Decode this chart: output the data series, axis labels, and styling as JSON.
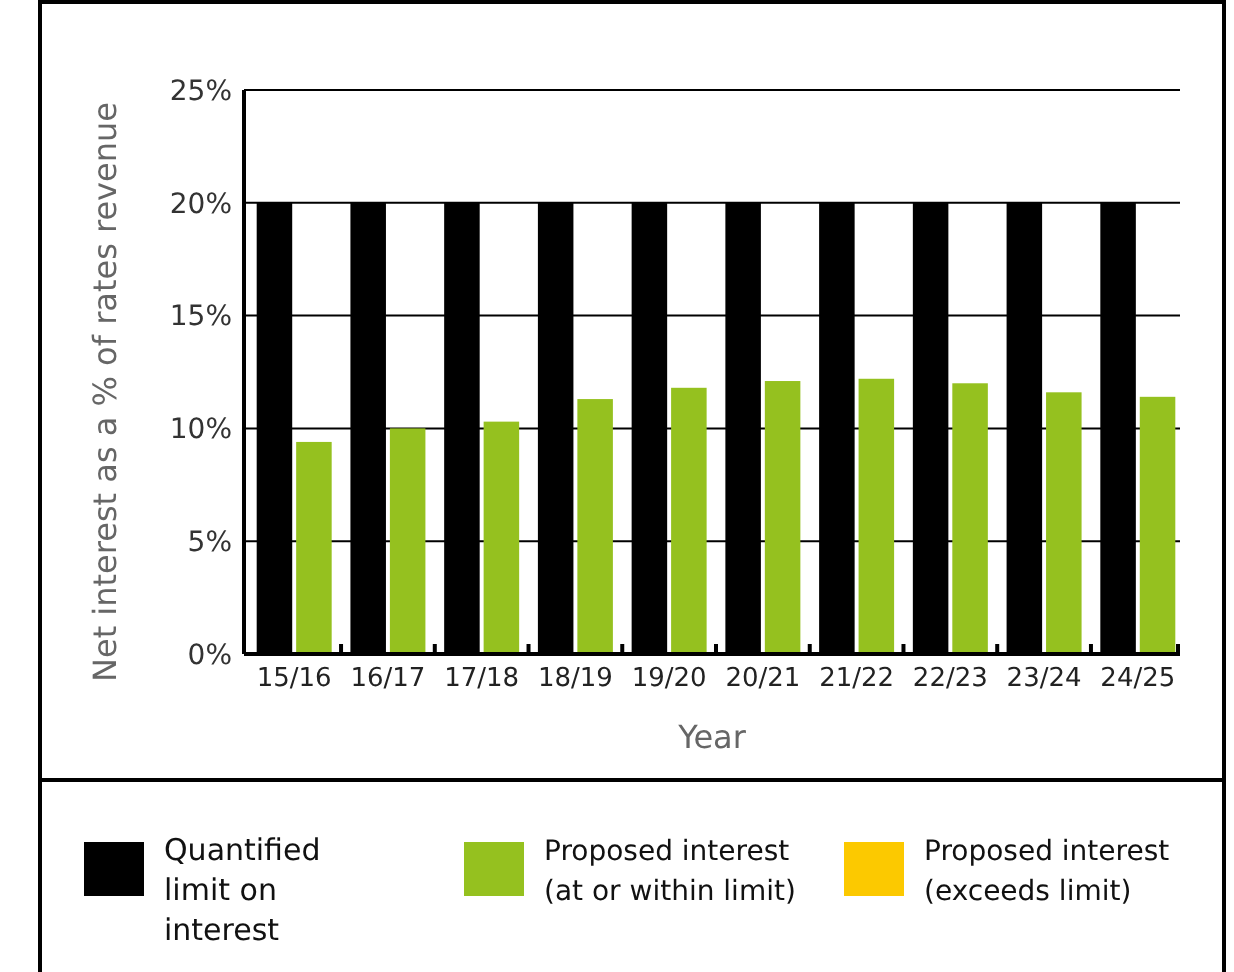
{
  "chart_data": {
    "type": "bar",
    "xlabel": "Year",
    "ylabel": "Net interest as a % of rates revenue",
    "categories": [
      "15/16",
      "16/17",
      "17/18",
      "18/19",
      "19/20",
      "20/21",
      "21/22",
      "22/23",
      "23/24",
      "24/25"
    ],
    "series": [
      {
        "name": "Quantified limit on interest",
        "color": "#000000",
        "values": [
          20,
          20,
          20,
          20,
          20,
          20,
          20,
          20,
          20,
          20
        ]
      },
      {
        "name": "Proposed interest (at or within limit)",
        "color": "#95c11f",
        "values": [
          9.4,
          10.0,
          10.3,
          11.3,
          11.8,
          12.1,
          12.2,
          12.0,
          11.6,
          11.4
        ]
      },
      {
        "name": "Proposed interest (exceeds limit)",
        "color": "#fcc900",
        "values": [
          null,
          null,
          null,
          null,
          null,
          null,
          null,
          null,
          null,
          null
        ]
      }
    ],
    "ylim": [
      0,
      25
    ],
    "yticks": [
      {
        "value": 0,
        "label": "0%"
      },
      {
        "value": 5,
        "label": "5%"
      },
      {
        "value": 10,
        "label": "10%"
      },
      {
        "value": 15,
        "label": "15%"
      },
      {
        "value": 20,
        "label": "20%"
      },
      {
        "value": 25,
        "label": "25%"
      }
    ],
    "grid": "y",
    "legend": "bottom"
  }
}
